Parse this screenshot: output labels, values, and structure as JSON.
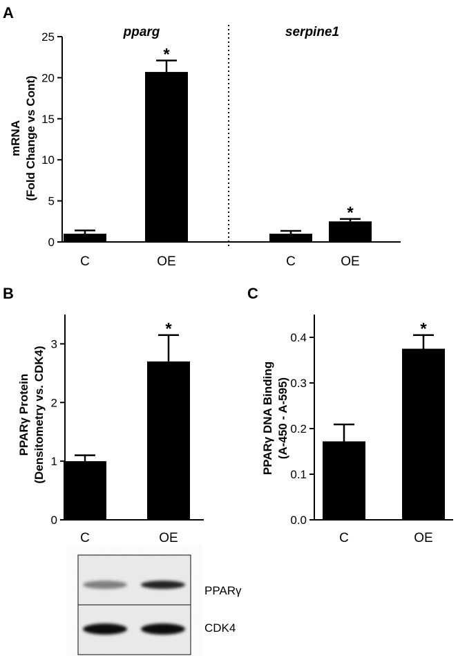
{
  "panels": {
    "A": "A",
    "B": "B",
    "C": "C"
  },
  "chart_data": [
    {
      "id": "A",
      "type": "bar",
      "groups": [
        {
          "title": "pparg",
          "categories": [
            "C",
            "OE"
          ],
          "values": [
            1.0,
            20.7
          ],
          "errors": [
            0.4,
            1.4
          ],
          "significance": [
            "",
            "*"
          ]
        },
        {
          "title": "serpine1",
          "categories": [
            "C",
            "OE"
          ],
          "values": [
            1.0,
            2.5
          ],
          "errors": [
            0.35,
            0.3
          ],
          "significance": [
            "",
            "*"
          ]
        }
      ],
      "ylabel_line1": "mRNA",
      "ylabel_line2": "(Fold Change vs Cont)",
      "ylim": [
        0,
        25
      ],
      "yticks": [
        "0",
        "5",
        "10",
        "15",
        "20",
        "25"
      ],
      "bar_color": "#000000",
      "separator": "dotted"
    },
    {
      "id": "B",
      "type": "bar",
      "categories": [
        "C",
        "OE"
      ],
      "values": [
        1.0,
        2.7
      ],
      "errors": [
        0.1,
        0.45
      ],
      "significance": [
        "",
        "*"
      ],
      "ylabel_line1": "PPARγ Protein",
      "ylabel_line2": "(Densitometry vs. CDK4)",
      "ylim": [
        0,
        3.5
      ],
      "yticks": [
        "0",
        "1",
        "2",
        "3"
      ],
      "bar_color": "#000000"
    },
    {
      "id": "C",
      "type": "bar",
      "categories": [
        "C",
        "OE"
      ],
      "values": [
        0.172,
        0.375
      ],
      "errors": [
        0.037,
        0.03
      ],
      "significance": [
        "",
        "*"
      ],
      "ylabel_line1": "PPARγ DNA Binding",
      "ylabel_line2": "(A-450 - A-595)",
      "ylim": [
        0,
        0.45
      ],
      "yticks": [
        "0.0",
        "0.1",
        "0.2",
        "0.3",
        "0.4"
      ],
      "bar_color": "#000000"
    }
  ],
  "blot": {
    "rows": [
      {
        "label": "PPARγ",
        "band_intensity": [
          0.45,
          0.85
        ]
      },
      {
        "label": "CDK4",
        "band_intensity": [
          0.95,
          0.95
        ]
      }
    ]
  }
}
